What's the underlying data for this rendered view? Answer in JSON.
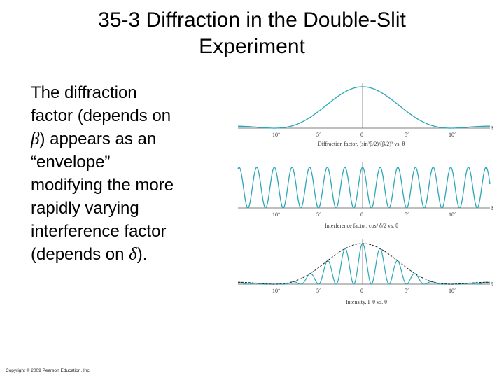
{
  "slide": {
    "title_line1": "35-3 Diffraction in the Double-Slit",
    "title_line2": "Experiment",
    "body": {
      "line1": "The diffraction",
      "line2": "factor (depends on",
      "line3_sym": "β",
      "line3_rest": ") appears as an",
      "line4": "“envelope”",
      "line5": "modifying the more",
      "line6": "rapidly varying",
      "line7": "interference factor",
      "line8_pre": "(depends on ",
      "line8_sym": "δ",
      "line8_post": ")."
    },
    "copyright": "Copyright © 2009 Pearson Education, Inc."
  },
  "figure": {
    "curve_color": "#2ba7b8",
    "envelope_color": "#222222",
    "panels": [
      {
        "name": "diffraction",
        "tick_labels": [
          "10°",
          "5°",
          "0",
          "5°",
          "10°"
        ],
        "end_label": "δ",
        "caption": "Diffraction factor, (sin²β/2)/(β/2)² vs. θ"
      },
      {
        "name": "interference",
        "tick_labels": [
          "10°",
          "5°",
          "0",
          "5°",
          "10°"
        ],
        "end_label": "δ",
        "caption": "Interference factor, cos² δ/2 vs. θ"
      },
      {
        "name": "intensity",
        "tick_labels": [
          "10°",
          "5°",
          "0",
          "5°",
          "10°"
        ],
        "end_label": "θ",
        "caption": "Intensity, I_θ vs. θ"
      }
    ]
  }
}
